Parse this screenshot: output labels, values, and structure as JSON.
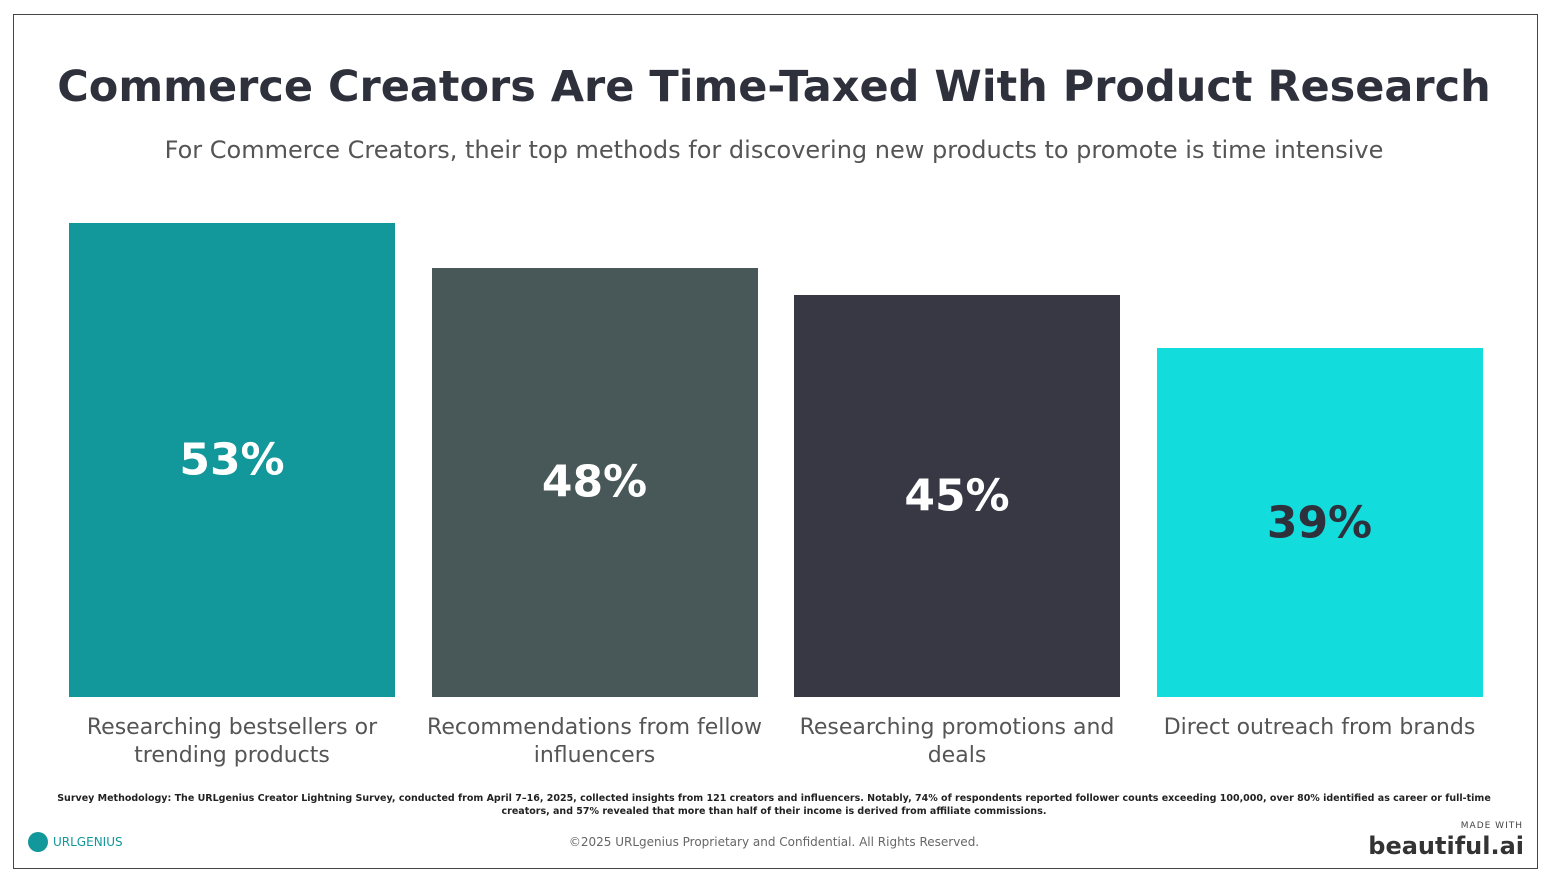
{
  "chart_data": {
    "type": "bar",
    "title": "Commerce Creators Are Time-Taxed With Product Research",
    "subtitle": "For Commerce Creators, their top methods for discovering new products to promote is time intensive",
    "categories": [
      "Researching bestsellers or trending products",
      "Recommendations from fellow influencers",
      "Researching promotions and deals",
      "Direct outreach from brands"
    ],
    "values": [
      53,
      48,
      45,
      39
    ],
    "value_labels": [
      "53%",
      "48%",
      "45%",
      "39%"
    ],
    "colors": [
      "#12979a",
      "#485757",
      "#373844",
      "#13dcdc"
    ]
  },
  "footer": {
    "methodology": "Survey Methodology: The URLgenius Creator Lightning Survey, conducted from April 7–16, 2025, collected insights from 121 creators and influencers. Notably, 74% of respondents reported follower counts exceeding 100,000, over 80% identified as career or full-time creators, and 57% revealed that more than half of their income is derived from affiliate commissions.",
    "copyright": "©2025 URLgenius Proprietary and Confidential. All Rights Reserved.",
    "logo": "URLGENIUS",
    "made_with": "MADE WITH",
    "brand": "beautiful.ai"
  }
}
